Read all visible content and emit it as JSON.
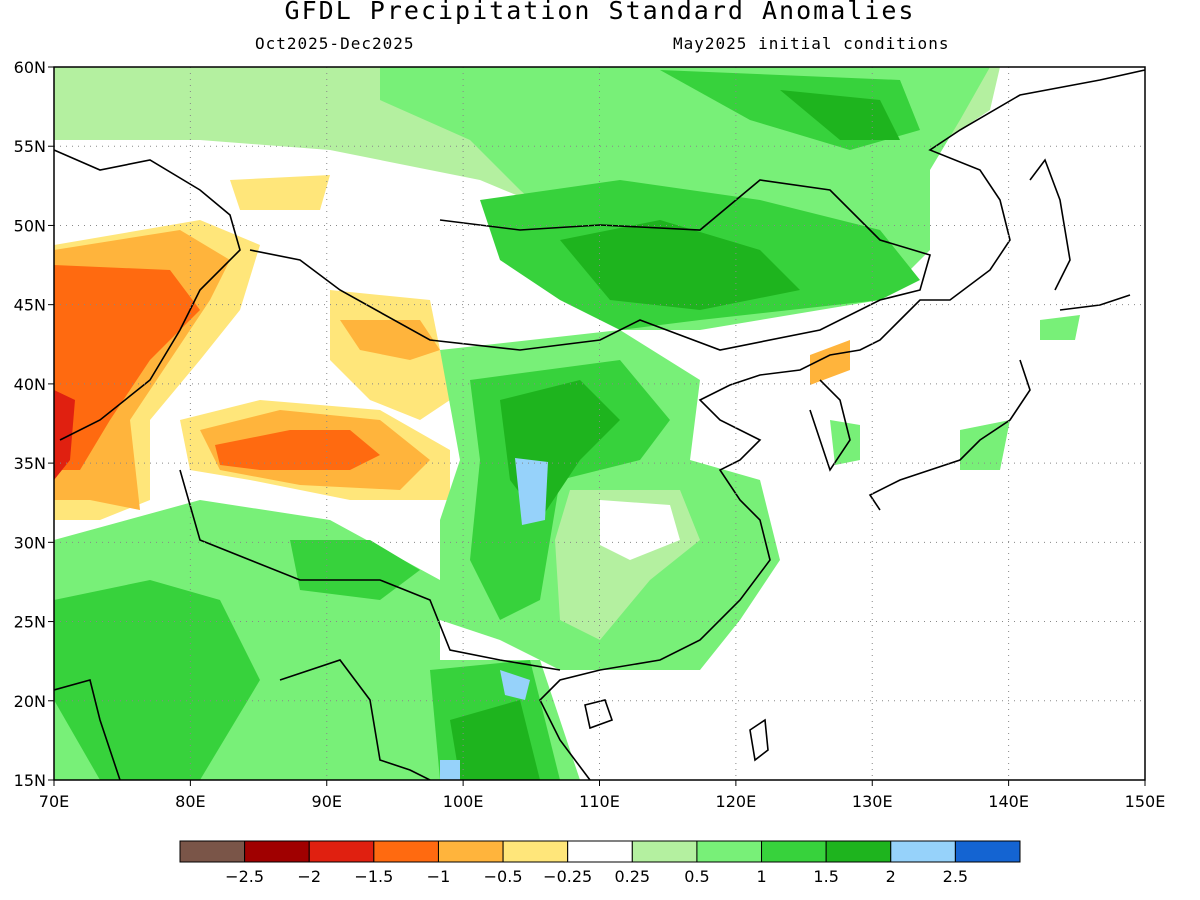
{
  "header": {
    "title": "GFDL Precipitation Standard Anomalies",
    "period": "Oct2025-Dec2025",
    "init": "May2025 initial conditions"
  },
  "map": {
    "lon_range": [
      70,
      150
    ],
    "lat_range": [
      15,
      60
    ],
    "lon_ticks": [
      "70E",
      "80E",
      "90E",
      "100E",
      "110E",
      "120E",
      "130E",
      "140E",
      "150E"
    ],
    "lat_ticks": [
      "15N",
      "20N",
      "25N",
      "30N",
      "35N",
      "40N",
      "45N",
      "50N",
      "55N",
      "60N"
    ],
    "grid": "dotted"
  },
  "legend": {
    "colors": [
      "#7a5548",
      "#a00000",
      "#e02010",
      "#ff6a10",
      "#ffb43c",
      "#ffe67a",
      "#ffffff",
      "#b4f0a0",
      "#78f078",
      "#37d23c",
      "#1eb41e",
      "#96d2fa",
      "#1464d2"
    ],
    "labels": [
      "−2.5",
      "−2",
      "−1.5",
      "−1",
      "−0.5",
      "−0.25",
      "0.25",
      "0.5",
      "1",
      "1.5",
      "2",
      "2.5"
    ]
  }
}
